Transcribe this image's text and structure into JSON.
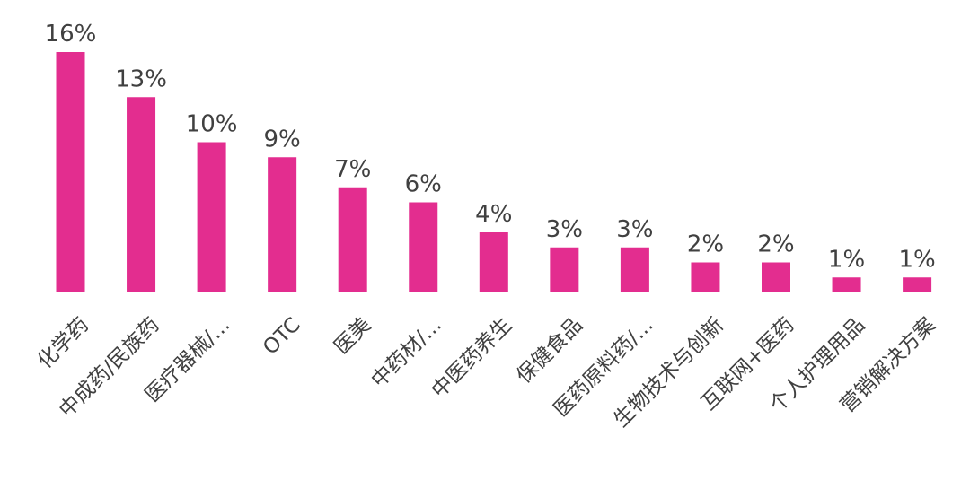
{
  "chart_data": {
    "type": "bar",
    "categories": [
      "化学药",
      "中成药/民族药",
      "医疗器械/...",
      "OTC",
      "医美",
      "中药材/...",
      "中医药养生",
      "保健食品",
      "医药原料药/...",
      "生物技术与创新",
      "互联网+医药",
      "个人护理用品",
      "营销解决方案"
    ],
    "values": [
      16,
      13,
      10,
      9,
      7,
      6,
      4,
      3,
      3,
      2,
      2,
      1,
      1
    ],
    "value_labels": [
      "16%",
      "13%",
      "10%",
      "9%",
      "7%",
      "6%",
      "4%",
      "3%",
      "3%",
      "2%",
      "2%",
      "1%",
      "1%"
    ],
    "color": "#e32d8f"
  }
}
